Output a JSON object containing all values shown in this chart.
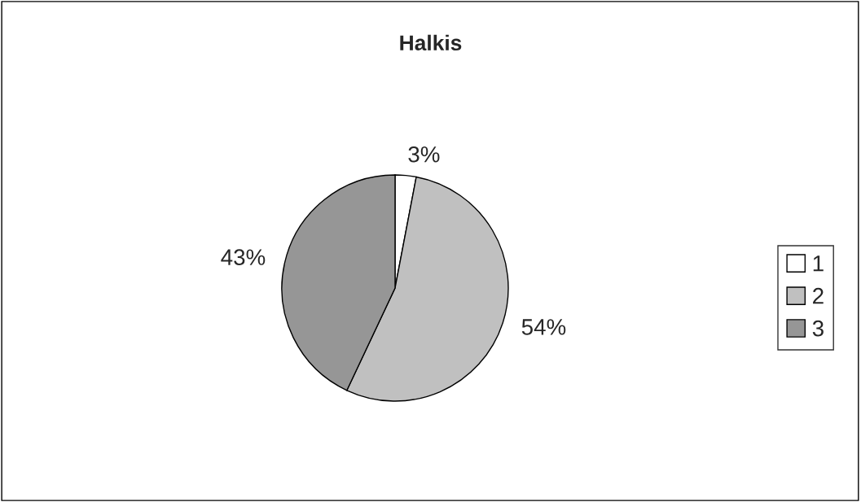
{
  "chart_data": {
    "type": "pie",
    "title": "Halkis",
    "categories": [
      "1",
      "2",
      "3"
    ],
    "values": [
      3,
      54,
      43
    ],
    "colors": [
      "#ffffff",
      "#c0c0c0",
      "#969696"
    ],
    "value_labels": [
      "3%",
      "54%",
      "43%"
    ],
    "legend": "right"
  }
}
